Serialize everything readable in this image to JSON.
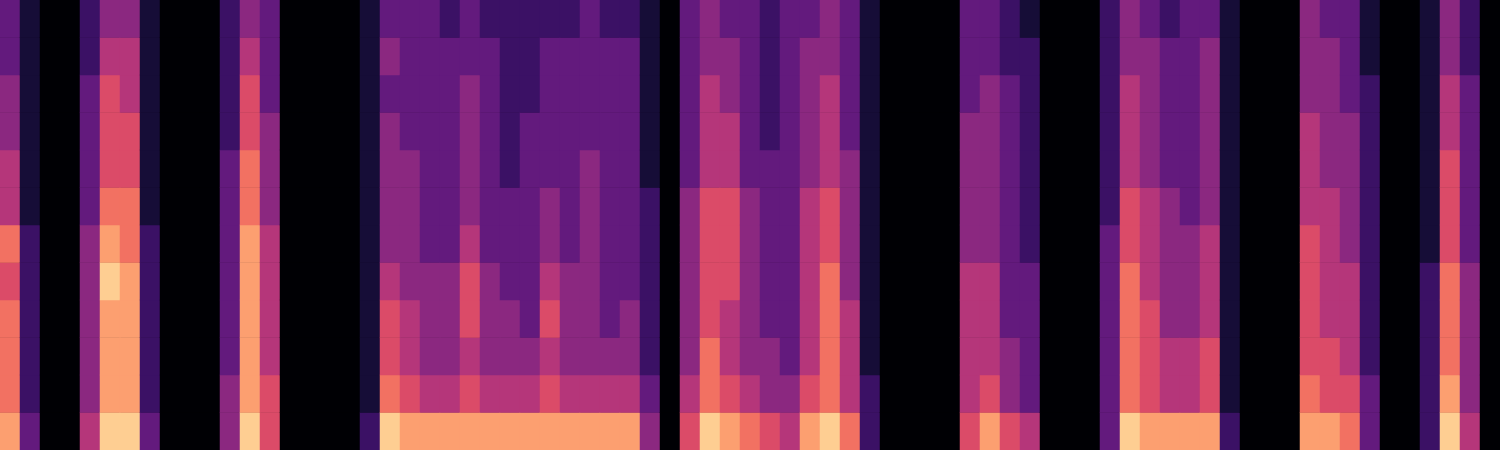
{
  "chart_data": {
    "type": "heatmap",
    "tick_labels": false,
    "grid": false,
    "color_range": [
      0,
      10
    ],
    "cells": [
      [
        8,
        7,
        7,
        7,
        6,
        7,
        5,
        5,
        4,
        4,
        3,
        3
      ],
      [
        3,
        2,
        2,
        2,
        2,
        2,
        1,
        1,
        1,
        1,
        1,
        1
      ],
      [
        0,
        0,
        0,
        0,
        0,
        0,
        0,
        0,
        0,
        0,
        0,
        0
      ],
      [
        0,
        0,
        0,
        0,
        0,
        0,
        0,
        0,
        0,
        0,
        0,
        0
      ],
      [
        5,
        4,
        4,
        4,
        4,
        4,
        3,
        3,
        3,
        3,
        2,
        2
      ],
      [
        9,
        8,
        8,
        8,
        9,
        8,
        7,
        6,
        6,
        6,
        5,
        4
      ],
      [
        9,
        8,
        8,
        8,
        8,
        7,
        7,
        6,
        6,
        5,
        5,
        4
      ],
      [
        3,
        2,
        2,
        2,
        2,
        2,
        1,
        1,
        1,
        1,
        1,
        1
      ],
      [
        0,
        0,
        0,
        0,
        0,
        0,
        0,
        0,
        0,
        0,
        0,
        0
      ],
      [
        0,
        0,
        0,
        0,
        0,
        0,
        0,
        0,
        0,
        0,
        0,
        0
      ],
      [
        0,
        0,
        0,
        0,
        0,
        0,
        0,
        0,
        0,
        0,
        0,
        0
      ],
      [
        4,
        4,
        3,
        3,
        3,
        3,
        3,
        3,
        2,
        2,
        2,
        2
      ],
      [
        9,
        8,
        8,
        8,
        8,
        8,
        7,
        7,
        6,
        6,
        5,
        4
      ],
      [
        6,
        6,
        5,
        5,
        5,
        5,
        4,
        4,
        4,
        3,
        3,
        3
      ],
      [
        0,
        0,
        0,
        0,
        0,
        0,
        0,
        0,
        0,
        0,
        0,
        0
      ],
      [
        0,
        0,
        0,
        0,
        0,
        0,
        0,
        0,
        0,
        0,
        0,
        0
      ],
      [
        0,
        0,
        0,
        0,
        0,
        0,
        0,
        0,
        0,
        0,
        0,
        0
      ],
      [
        0,
        0,
        0,
        0,
        0,
        0,
        0,
        0,
        0,
        0,
        0,
        0
      ],
      [
        2,
        1,
        1,
        1,
        1,
        1,
        1,
        1,
        1,
        1,
        1,
        1
      ],
      [
        9,
        7,
        6,
        6,
        5,
        4,
        4,
        4,
        4,
        3,
        4,
        3
      ],
      [
        8,
        6,
        5,
        5,
        4,
        4,
        4,
        4,
        3,
        3,
        3,
        3
      ],
      [
        8,
        5,
        4,
        4,
        4,
        3,
        3,
        3,
        3,
        3,
        3,
        3
      ],
      [
        8,
        5,
        4,
        4,
        4,
        3,
        3,
        3,
        3,
        3,
        3,
        2
      ],
      [
        8,
        6,
        5,
        6,
        6,
        5,
        4,
        4,
        4,
        4,
        3,
        3
      ],
      [
        8,
        5,
        4,
        4,
        4,
        3,
        3,
        3,
        3,
        3,
        3,
        2
      ],
      [
        8,
        5,
        4,
        4,
        3,
        3,
        3,
        2,
        2,
        2,
        2,
        2
      ],
      [
        8,
        5,
        4,
        3,
        3,
        3,
        3,
        3,
        3,
        2,
        2,
        2
      ],
      [
        8,
        6,
        5,
        6,
        5,
        4,
        4,
        3,
        3,
        3,
        3,
        2
      ],
      [
        8,
        5,
        4,
        4,
        4,
        3,
        3,
        3,
        3,
        3,
        3,
        2
      ],
      [
        8,
        5,
        4,
        4,
        4,
        4,
        4,
        4,
        3,
        3,
        3,
        3
      ],
      [
        8,
        5,
        4,
        3,
        3,
        3,
        3,
        3,
        3,
        3,
        3,
        2
      ],
      [
        8,
        5,
        4,
        4,
        3,
        3,
        3,
        3,
        3,
        3,
        3,
        2
      ],
      [
        4,
        3,
        2,
        2,
        2,
        2,
        2,
        1,
        1,
        1,
        1,
        1
      ],
      [
        0,
        0,
        0,
        0,
        0,
        0,
        0,
        0,
        0,
        0,
        0,
        0
      ],
      [
        6,
        5,
        4,
        4,
        4,
        4,
        4,
        3,
        3,
        3,
        3,
        3
      ],
      [
        9,
        7,
        7,
        6,
        6,
        6,
        6,
        5,
        5,
        5,
        4,
        4
      ],
      [
        8,
        6,
        5,
        5,
        6,
        6,
        6,
        5,
        5,
        4,
        4,
        3
      ],
      [
        7,
        5,
        4,
        4,
        4,
        4,
        4,
        3,
        3,
        3,
        3,
        3
      ],
      [
        6,
        4,
        4,
        3,
        3,
        3,
        3,
        3,
        2,
        2,
        2,
        2
      ],
      [
        5,
        4,
        3,
        3,
        3,
        3,
        3,
        3,
        3,
        3,
        3,
        3
      ],
      [
        8,
        6,
        5,
        5,
        5,
        5,
        5,
        4,
        4,
        4,
        4,
        3
      ],
      [
        9,
        7,
        7,
        7,
        7,
        6,
        6,
        5,
        5,
        5,
        4,
        4
      ],
      [
        7,
        5,
        5,
        5,
        4,
        4,
        4,
        4,
        3,
        3,
        3,
        3
      ],
      [
        2,
        2,
        1,
        1,
        1,
        1,
        1,
        1,
        1,
        1,
        1,
        1
      ],
      [
        0,
        0,
        0,
        0,
        0,
        0,
        0,
        0,
        0,
        0,
        0,
        0
      ],
      [
        0,
        0,
        0,
        0,
        0,
        0,
        0,
        0,
        0,
        0,
        0,
        0
      ],
      [
        0,
        0,
        0,
        0,
        0,
        0,
        0,
        0,
        0,
        0,
        0,
        0
      ],
      [
        0,
        0,
        0,
        0,
        0,
        0,
        0,
        0,
        0,
        0,
        0,
        0
      ],
      [
        6,
        5,
        5,
        5,
        5,
        4,
        4,
        4,
        4,
        3,
        3,
        3
      ],
      [
        8,
        6,
        5,
        5,
        5,
        4,
        4,
        4,
        4,
        4,
        3,
        3
      ],
      [
        6,
        4,
        4,
        3,
        3,
        3,
        3,
        3,
        3,
        3,
        2,
        2
      ],
      [
        5,
        3,
        3,
        3,
        3,
        2,
        2,
        2,
        2,
        2,
        2,
        1
      ],
      [
        0,
        0,
        0,
        0,
        0,
        0,
        0,
        0,
        0,
        0,
        0,
        0
      ],
      [
        0,
        0,
        0,
        0,
        0,
        0,
        0,
        0,
        0,
        0,
        0,
        0
      ],
      [
        0,
        0,
        0,
        0,
        0,
        0,
        0,
        0,
        0,
        0,
        0,
        0
      ],
      [
        3,
        3,
        3,
        3,
        3,
        3,
        2,
        2,
        2,
        2,
        2,
        2
      ],
      [
        9,
        7,
        7,
        7,
        7,
        6,
        6,
        5,
        5,
        5,
        4,
        4
      ],
      [
        8,
        6,
        6,
        6,
        5,
        5,
        5,
        4,
        4,
        4,
        4,
        3
      ],
      [
        8,
        5,
        5,
        4,
        4,
        4,
        4,
        3,
        3,
        3,
        3,
        2
      ],
      [
        8,
        5,
        5,
        4,
        4,
        4,
        3,
        3,
        3,
        3,
        3,
        3
      ],
      [
        8,
        6,
        6,
        5,
        5,
        5,
        4,
        4,
        4,
        4,
        4,
        3
      ],
      [
        2,
        1,
        1,
        1,
        1,
        1,
        1,
        1,
        1,
        1,
        1,
        1
      ],
      [
        0,
        0,
        0,
        0,
        0,
        0,
        0,
        0,
        0,
        0,
        0,
        0
      ],
      [
        0,
        0,
        0,
        0,
        0,
        0,
        0,
        0,
        0,
        0,
        0,
        0
      ],
      [
        0,
        0,
        0,
        0,
        0,
        0,
        0,
        0,
        0,
        0,
        0,
        0
      ],
      [
        8,
        7,
        6,
        6,
        6,
        6,
        5,
        5,
        5,
        4,
        4,
        4
      ],
      [
        8,
        6,
        6,
        5,
        5,
        5,
        5,
        4,
        4,
        4,
        4,
        3
      ],
      [
        7,
        6,
        5,
        5,
        5,
        4,
        4,
        4,
        4,
        3,
        3,
        3
      ],
      [
        3,
        3,
        2,
        2,
        2,
        2,
        2,
        2,
        2,
        2,
        1,
        1
      ],
      [
        0,
        0,
        0,
        0,
        0,
        0,
        0,
        0,
        0,
        0,
        0,
        0
      ],
      [
        0,
        0,
        0,
        0,
        0,
        0,
        0,
        0,
        0,
        0,
        0,
        0
      ],
      [
        2,
        2,
        2,
        2,
        2,
        1,
        1,
        1,
        1,
        1,
        1,
        1
      ],
      [
        9,
        8,
        7,
        7,
        7,
        6,
        6,
        6,
        5,
        5,
        4,
        4
      ],
      [
        5,
        4,
        4,
        4,
        4,
        3,
        3,
        3,
        3,
        3,
        2,
        2
      ],
      [
        0,
        0,
        0,
        0,
        0,
        0,
        0,
        0,
        0,
        0,
        0,
        0
      ]
    ]
  }
}
